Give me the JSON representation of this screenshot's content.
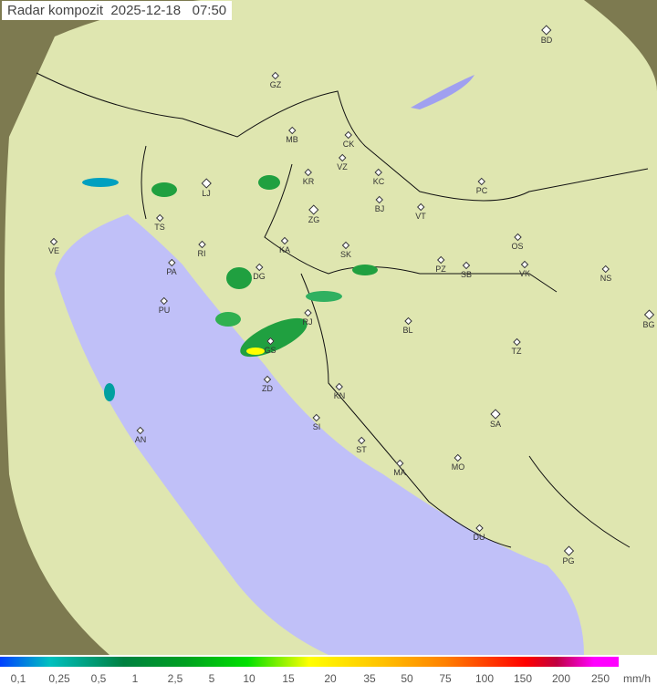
{
  "title": "Radar kompozit  2025-12-18   07:50",
  "colors": {
    "land": "#dfe6b0",
    "sea": "#c0c0f8",
    "outside": "#8a8a5a",
    "precip_light": "#00c0a0",
    "precip": "#20a040",
    "precip_strong": "#ffff00"
  },
  "cities": [
    "GZ",
    "BD",
    "MB",
    "CK",
    "VZ",
    "KR",
    "KC",
    "PC",
    "LJ",
    "TS",
    "ZG",
    "BJ",
    "VT",
    "VE",
    "RI",
    "KA",
    "SK",
    "OS",
    "PA",
    "DG",
    "PZ",
    "SB",
    "VK",
    "NS",
    "PU",
    "RJ",
    "BL",
    "BG",
    "GS",
    "TZ",
    "ZD",
    "KN",
    "SA",
    "AN",
    "SI",
    "ST",
    "MA",
    "MO",
    "DU",
    "PG"
  ],
  "legend": {
    "ticks": [
      "0,1",
      "0,25",
      "0,5",
      "1",
      "2,5",
      "5",
      "10",
      "15",
      "20",
      "35",
      "50",
      "75",
      "100",
      "150",
      "200",
      "250"
    ],
    "unit": "mm/h"
  }
}
